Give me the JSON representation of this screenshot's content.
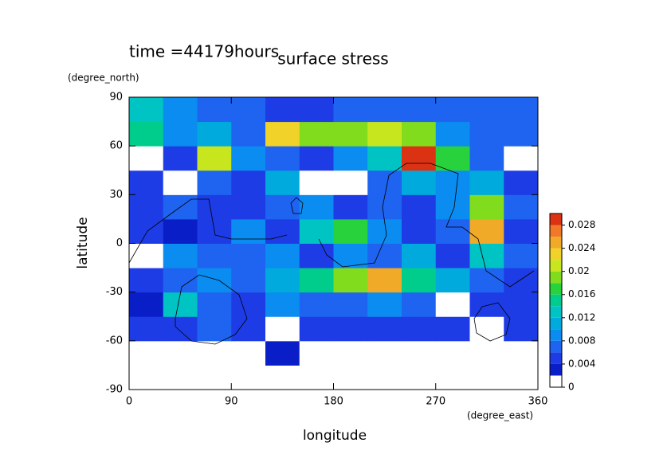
{
  "chart_data": {
    "type": "contour",
    "title": "surface stress",
    "subtitle": "time =44179hours",
    "xlabel": "longitude",
    "ylabel": "latitude",
    "x_unit": "(degree_east)",
    "y_unit": "(degree_north)",
    "x": [
      15,
      45,
      75,
      105,
      135,
      165,
      195,
      225,
      255,
      285,
      315,
      345
    ],
    "y": [
      -82.5,
      -67.5,
      -52.5,
      -37.5,
      -22.5,
      -7.5,
      7.5,
      22.5,
      37.5,
      52.5,
      67.5,
      82.5
    ],
    "z": [
      [
        0.0005,
        0.0005,
        0.0005,
        0.0005,
        0.0005,
        0.0005,
        0.0005,
        0.0005,
        0.0005,
        0.0005,
        0.0005,
        0.0005
      ],
      [
        0.001,
        0.001,
        0.001,
        0.001,
        0.003,
        0.001,
        0.001,
        0.001,
        0.001,
        0.001,
        0.001,
        0.001
      ],
      [
        0.004,
        0.004,
        0.006,
        0.004,
        0.001,
        0.004,
        0.004,
        0.004,
        0.004,
        0.004,
        0.001,
        0.004
      ],
      [
        0.002,
        0.012,
        0.006,
        0.004,
        0.008,
        0.006,
        0.006,
        0.008,
        0.006,
        0.001,
        0.004,
        0.004
      ],
      [
        0.004,
        0.006,
        0.008,
        0.006,
        0.01,
        0.014,
        0.018,
        0.024,
        0.014,
        0.01,
        0.006,
        0.004
      ],
      [
        0.001,
        0.008,
        0.006,
        0.006,
        0.008,
        0.004,
        0.008,
        0.006,
        0.01,
        0.004,
        0.012,
        0.006
      ],
      [
        0.004,
        0.003,
        0.004,
        0.008,
        0.004,
        0.012,
        0.016,
        0.008,
        0.004,
        0.006,
        0.024,
        0.004
      ],
      [
        0.004,
        0.006,
        0.005,
        0.004,
        0.006,
        0.008,
        0.004,
        0.006,
        0.004,
        0.008,
        0.018,
        0.006
      ],
      [
        0.004,
        0.001,
        0.006,
        0.005,
        0.01,
        0.001,
        0.001,
        0.006,
        0.01,
        0.008,
        0.01,
        0.004
      ],
      [
        0.001,
        0.004,
        0.02,
        0.008,
        0.006,
        0.004,
        0.008,
        0.012,
        0.028,
        0.016,
        0.006,
        0.001
      ],
      [
        0.014,
        0.008,
        0.01,
        0.006,
        0.022,
        0.018,
        0.018,
        0.02,
        0.018,
        0.008,
        0.006,
        0.006
      ],
      [
        0.012,
        0.008,
        0.006,
        0.006,
        0.005,
        0.005,
        0.006,
        0.006,
        0.006,
        0.006,
        0.006,
        0.006
      ]
    ],
    "xlim": [
      0,
      360
    ],
    "ylim": [
      -90,
      90
    ],
    "xticks": [
      0,
      90,
      180,
      270,
      360
    ],
    "yticks": [
      -90,
      -60,
      -30,
      0,
      30,
      60,
      90
    ],
    "levels": [
      0,
      0.002,
      0.004,
      0.006,
      0.008,
      0.01,
      0.012,
      0.014,
      0.016,
      0.018,
      0.02,
      0.022,
      0.024,
      0.026,
      0.028,
      0.03
    ],
    "colors": [
      "#ffffff",
      "#0a1ec8",
      "#1e3ce6",
      "#1e64f0",
      "#0a8cf0",
      "#00aadc",
      "#00c3c3",
      "#00cd8c",
      "#28d23c",
      "#82dc1e",
      "#c8e61e",
      "#f0d228",
      "#f0aa28",
      "#f07828",
      "#dc3214"
    ],
    "colorbar_ticks": [
      0,
      0.004,
      0.008,
      0.012,
      0.016,
      0.02,
      0.024,
      0.028
    ]
  }
}
